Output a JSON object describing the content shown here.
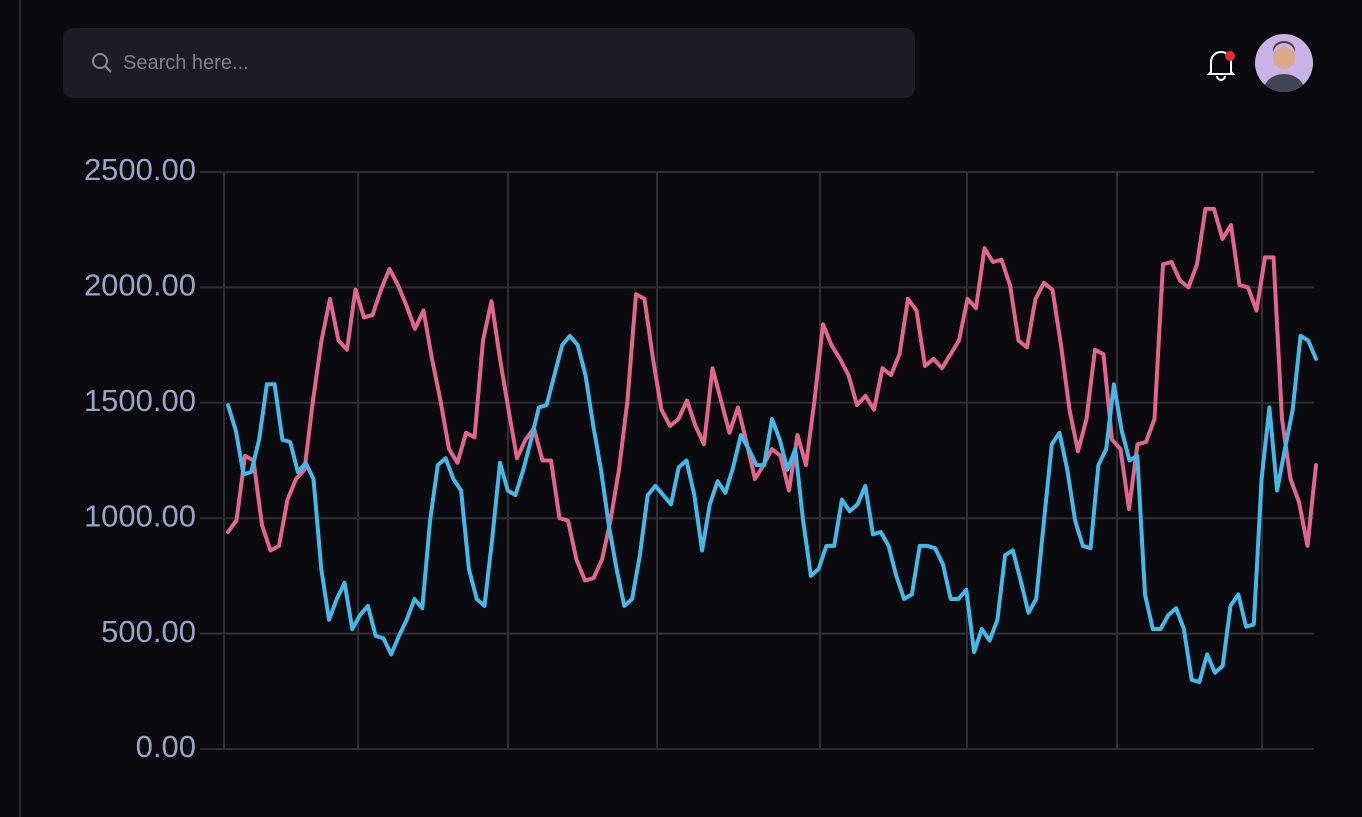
{
  "search": {
    "placeholder": "Search here..."
  },
  "chart_data": {
    "type": "line",
    "ylim": [
      0,
      2500
    ],
    "yticks": [
      {
        "value": 0,
        "label": "0.00"
      },
      {
        "value": 500,
        "label": "500.00"
      },
      {
        "value": 1000,
        "label": "1000.00"
      },
      {
        "value": 1500,
        "label": "1500.00"
      },
      {
        "value": 2000,
        "label": "2000.00"
      },
      {
        "value": 2500,
        "label": "2500.00"
      }
    ],
    "grid": true,
    "series": [
      {
        "color": "#e0668d",
        "values": [
          940,
          990,
          1270,
          1250,
          970,
          860,
          880,
          1080,
          1170,
          1210,
          1510,
          1770,
          1950,
          1770,
          1730,
          1990,
          1870,
          1880,
          1990,
          2080,
          2010,
          1920,
          1820,
          1900,
          1690,
          1510,
          1300,
          1240,
          1370,
          1350,
          1770,
          1940,
          1690,
          1470,
          1260,
          1340,
          1390,
          1250,
          1250,
          1000,
          990,
          820,
          730,
          740,
          820,
          990,
          1210,
          1510,
          1970,
          1950,
          1690,
          1470,
          1400,
          1430,
          1510,
          1400,
          1320,
          1650,
          1510,
          1370,
          1480,
          1330,
          1170,
          1230,
          1300,
          1270,
          1120,
          1360,
          1230,
          1510,
          1840,
          1750,
          1690,
          1620,
          1490,
          1530,
          1470,
          1650,
          1620,
          1710,
          1950,
          1900,
          1660,
          1690,
          1650,
          1710,
          1770,
          1950,
          1910,
          2170,
          2110,
          2120,
          2010,
          1770,
          1740,
          1950,
          2020,
          1990,
          1750,
          1470,
          1290,
          1430,
          1730,
          1710,
          1340,
          1300,
          1040,
          1320,
          1330,
          1430,
          2100,
          2110,
          2030,
          2000,
          2100,
          2340,
          2340,
          2210,
          2270,
          2010,
          2000,
          1900,
          2130,
          2130,
          1430,
          1170,
          1070,
          880,
          1230
        ]
      },
      {
        "color": "#45b8e8",
        "values": [
          1490,
          1380,
          1190,
          1200,
          1340,
          1580,
          1580,
          1340,
          1330,
          1200,
          1240,
          1170,
          780,
          560,
          650,
          720,
          520,
          580,
          620,
          490,
          480,
          410,
          490,
          560,
          650,
          610,
          990,
          1230,
          1260,
          1170,
          1120,
          780,
          650,
          620,
          910,
          1240,
          1120,
          1100,
          1210,
          1340,
          1480,
          1490,
          1620,
          1750,
          1790,
          1750,
          1620,
          1400,
          1210,
          970,
          780,
          620,
          650,
          840,
          1100,
          1140,
          1100,
          1060,
          1220,
          1250,
          1100,
          860,
          1060,
          1160,
          1110,
          1220,
          1360,
          1300,
          1230,
          1230,
          1430,
          1340,
          1210,
          1300,
          990,
          750,
          780,
          880,
          880,
          1080,
          1030,
          1060,
          1140,
          930,
          940,
          880,
          750,
          650,
          670,
          880,
          880,
          870,
          800,
          650,
          650,
          690,
          420,
          520,
          470,
          560,
          840,
          860,
          730,
          590,
          650,
          990,
          1320,
          1370,
          1210,
          990,
          880,
          870,
          1230,
          1300,
          1580,
          1380,
          1250,
          1270,
          670,
          520,
          520,
          580,
          610,
          520,
          300,
          290,
          410,
          330,
          360,
          620,
          670,
          530,
          540,
          1170,
          1480,
          1120,
          1300,
          1470,
          1790,
          1770,
          1690
        ]
      }
    ]
  }
}
